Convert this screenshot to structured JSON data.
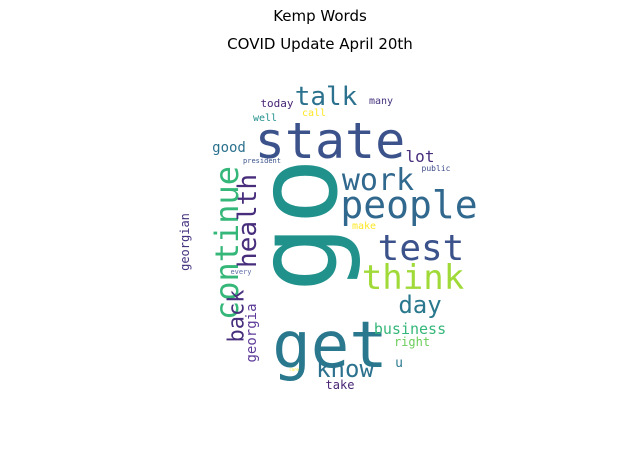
{
  "title": "Kemp Words",
  "subtitle": "COVID Update April 20th",
  "words": [
    {
      "text": "go",
      "color": "#21918c"
    },
    {
      "text": "get",
      "color": "#2a788e"
    },
    {
      "text": "state",
      "color": "#3b528b"
    },
    {
      "text": "people",
      "color": "#31688e"
    },
    {
      "text": "continue",
      "color": "#35b779"
    },
    {
      "text": "test",
      "color": "#3b528b"
    },
    {
      "text": "think",
      "color": "#a0da39"
    },
    {
      "text": "work",
      "color": "#31688e"
    },
    {
      "text": "health",
      "color": "#472d7b"
    },
    {
      "text": "talk",
      "color": "#2c728e"
    },
    {
      "text": "day",
      "color": "#2a788e"
    },
    {
      "text": "back",
      "color": "#472f7d"
    },
    {
      "text": "know",
      "color": "#2c728e"
    },
    {
      "text": "business",
      "color": "#35b779"
    },
    {
      "text": "georgia",
      "color": "#5e3c99"
    },
    {
      "text": "georgian",
      "color": "#46337e"
    },
    {
      "text": "lot",
      "color": "#472d7b"
    },
    {
      "text": "good",
      "color": "#2c728e"
    },
    {
      "text": "right",
      "color": "#6ccd5a"
    },
    {
      "text": "take",
      "color": "#482475"
    },
    {
      "text": "u",
      "color": "#2a788e"
    },
    {
      "text": "today",
      "color": "#482475"
    },
    {
      "text": "many",
      "color": "#46337e"
    },
    {
      "text": "well",
      "color": "#21918c"
    },
    {
      "text": "call",
      "color": "#fde725"
    },
    {
      "text": "make",
      "color": "#fde725"
    },
    {
      "text": "president",
      "color": "#3b528b"
    },
    {
      "text": "public",
      "color": "#3e4a89"
    },
    {
      "text": "every",
      "color": "#5c6ba6"
    },
    {
      "text": "rare",
      "color": "#fde725"
    }
  ]
}
